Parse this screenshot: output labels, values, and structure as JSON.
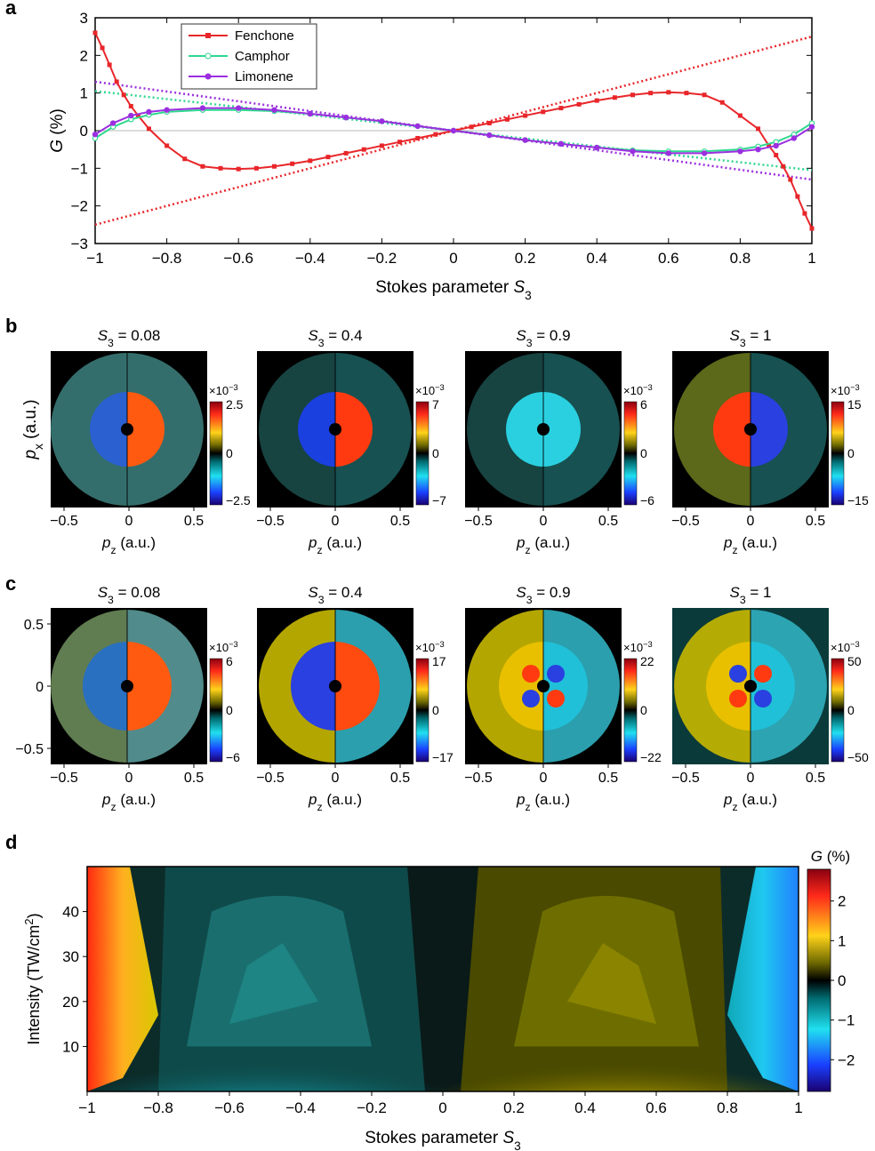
{
  "panel_letters": {
    "a": "a",
    "b": "b",
    "c": "c",
    "d": "d"
  },
  "chart_data": [
    {
      "panel": "a",
      "type": "line",
      "ylabel_var": "G",
      "ylabel_unit": "(%)",
      "xlabel_main": "Stokes parameter ",
      "xlabel_var": "S",
      "xlabel_sub": "3",
      "xlim": [
        -1,
        1
      ],
      "ylim": [
        -3,
        3
      ],
      "xticks": [
        "−1",
        "−0.8",
        "−0.6",
        "−0.4",
        "−0.2",
        "0",
        "0.2",
        "0.4",
        "0.6",
        "0.8",
        "1"
      ],
      "yticks": [
        "3",
        "2",
        "1",
        "0",
        "−1",
        "−2",
        "−3"
      ],
      "legend_position": "top-left",
      "series": [
        {
          "name": "Fenchone",
          "color": "#e8262a",
          "x": [
            -1,
            -0.98,
            -0.96,
            -0.94,
            -0.92,
            -0.9,
            -0.88,
            -0.85,
            -0.8,
            -0.75,
            -0.7,
            -0.65,
            -0.6,
            -0.55,
            -0.5,
            -0.45,
            -0.4,
            -0.35,
            -0.3,
            -0.25,
            -0.2,
            -0.15,
            -0.1,
            -0.05,
            0,
            0.05,
            0.1,
            0.15,
            0.2,
            0.25,
            0.3,
            0.35,
            0.4,
            0.45,
            0.5,
            0.55,
            0.6,
            0.65,
            0.7,
            0.75,
            0.8,
            0.85,
            0.88,
            0.9,
            0.92,
            0.94,
            0.96,
            0.98,
            1
          ],
          "y": [
            2.6,
            2.2,
            1.75,
            1.3,
            0.95,
            0.65,
            0.4,
            0.05,
            -0.4,
            -0.75,
            -0.95,
            -1.0,
            -1.02,
            -1.0,
            -0.95,
            -0.88,
            -0.8,
            -0.7,
            -0.6,
            -0.5,
            -0.4,
            -0.3,
            -0.2,
            -0.1,
            0,
            0.1,
            0.2,
            0.3,
            0.4,
            0.5,
            0.6,
            0.7,
            0.8,
            0.88,
            0.95,
            1.0,
            1.02,
            1.0,
            0.95,
            0.75,
            0.4,
            0.05,
            -0.4,
            -0.65,
            -0.95,
            -1.3,
            -1.75,
            -2.2,
            -2.6
          ],
          "fit": {
            "x": [
              -1,
              1
            ],
            "y": [
              -2.5,
              2.5
            ]
          }
        },
        {
          "name": "Camphor",
          "color": "#2fd88f",
          "x": [
            -1,
            -0.95,
            -0.9,
            -0.85,
            -0.8,
            -0.7,
            -0.6,
            -0.5,
            -0.4,
            -0.3,
            -0.2,
            -0.1,
            0,
            0.1,
            0.2,
            0.3,
            0.4,
            0.5,
            0.6,
            0.7,
            0.8,
            0.85,
            0.9,
            0.95,
            1
          ],
          "y": [
            -0.2,
            0.1,
            0.3,
            0.42,
            0.5,
            0.55,
            0.55,
            0.52,
            0.45,
            0.35,
            0.25,
            0.12,
            0,
            -0.12,
            -0.25,
            -0.35,
            -0.45,
            -0.52,
            -0.55,
            -0.55,
            -0.5,
            -0.42,
            -0.3,
            -0.1,
            0.2
          ],
          "fit": {
            "x": [
              -1,
              1
            ],
            "y": [
              1.05,
              -1.05
            ]
          }
        },
        {
          "name": "Limonene",
          "color": "#9b2fe0",
          "x": [
            -1,
            -0.95,
            -0.9,
            -0.85,
            -0.8,
            -0.7,
            -0.6,
            -0.5,
            -0.4,
            -0.3,
            -0.2,
            -0.1,
            0,
            0.1,
            0.2,
            0.3,
            0.4,
            0.5,
            0.6,
            0.7,
            0.8,
            0.85,
            0.9,
            0.95,
            1
          ],
          "y": [
            -0.1,
            0.2,
            0.4,
            0.5,
            0.55,
            0.6,
            0.6,
            0.55,
            0.45,
            0.35,
            0.25,
            0.12,
            0,
            -0.12,
            -0.25,
            -0.35,
            -0.45,
            -0.55,
            -0.6,
            -0.6,
            -0.55,
            -0.5,
            -0.4,
            -0.2,
            0.1
          ],
          "fit": {
            "x": [
              -1,
              1
            ],
            "y": [
              1.3,
              -1.3
            ]
          }
        }
      ]
    },
    {
      "panel": "b",
      "type": "heatmap",
      "ylabel_var": "p",
      "ylabel_sub": "x",
      "ylabel_unit": " (a.u.)",
      "xlabel_var": "p",
      "xlabel_sub": "z",
      "xlabel_unit": " (a.u.)",
      "xticks": [
        "−0.5",
        "0",
        "0.5"
      ],
      "colorbar_exponent": "×10",
      "colorbar_power": "−3",
      "maps": [
        {
          "title_var": "S",
          "title_sub": "3",
          "title_val": " = 0.08",
          "cb_max": "2.5",
          "cb_mid": "0",
          "cb_min": "−2.5"
        },
        {
          "title_var": "S",
          "title_sub": "3",
          "title_val": " = 0.4",
          "cb_max": "7",
          "cb_mid": "0",
          "cb_min": "−7"
        },
        {
          "title_var": "S",
          "title_sub": "3",
          "title_val": " = 0.9",
          "cb_max": "6",
          "cb_mid": "0",
          "cb_min": "−6"
        },
        {
          "title_var": "S",
          "title_sub": "3",
          "title_val": " = 1",
          "cb_max": "15",
          "cb_mid": "0",
          "cb_min": "−15"
        }
      ]
    },
    {
      "panel": "c",
      "type": "heatmap",
      "yticks": [
        "0.5",
        "0",
        "−0.5"
      ],
      "xlabel_var": "p",
      "xlabel_sub": "z",
      "xlabel_unit": " (a.u.)",
      "xticks": [
        "−0.5",
        "0",
        "0.5"
      ],
      "colorbar_exponent": "×10",
      "colorbar_power": "−3",
      "maps": [
        {
          "title_var": "S",
          "title_sub": "3",
          "title_val": " = 0.08",
          "cb_max": "6",
          "cb_mid": "0",
          "cb_min": "−6"
        },
        {
          "title_var": "S",
          "title_sub": "3",
          "title_val": " = 0.4",
          "cb_max": "17",
          "cb_mid": "0",
          "cb_min": "−17"
        },
        {
          "title_var": "S",
          "title_sub": "3",
          "title_val": " = 0.9",
          "cb_max": "22",
          "cb_mid": "0",
          "cb_min": "−22"
        },
        {
          "title_var": "S",
          "title_sub": "3",
          "title_val": " = 1",
          "cb_max": "50",
          "cb_mid": "0",
          "cb_min": "−50"
        }
      ]
    },
    {
      "panel": "d",
      "type": "heatmap",
      "ylabel_main": "Intensity (TW/cm",
      "ylabel_sup": "2",
      "ylabel_close": ")",
      "xlabel_main": "Stokes parameter ",
      "xlabel_var": "S",
      "xlabel_sub": "3",
      "xticks": [
        "−1",
        "−0.8",
        "−0.6",
        "−0.4",
        "−0.2",
        "0",
        "0.2",
        "0.4",
        "0.6",
        "0.8",
        "1"
      ],
      "yticks": [
        "40",
        "30",
        "20",
        "10"
      ],
      "xlim": [
        -1,
        1
      ],
      "ylim": [
        0,
        50
      ],
      "colorbar_title_var": "G",
      "colorbar_title_unit": " (%)",
      "colorbar_ticks": [
        "2",
        "1",
        "0",
        "−1",
        "−2"
      ],
      "colorbar_range": [
        -2.8,
        2.8
      ]
    }
  ]
}
